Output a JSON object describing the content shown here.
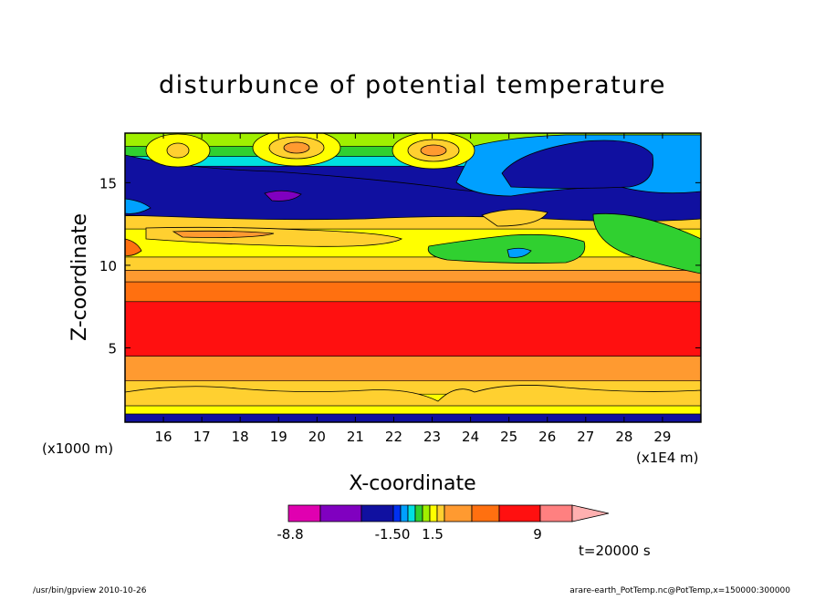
{
  "chart_data": {
    "type": "heatmap",
    "title": "disturbunce of potential temperature",
    "xlabel": "X-coordinate",
    "ylabel": "Z-coordinate",
    "x_scale_note": "(x1E4 m)",
    "y_scale_note": "(x1000 m)",
    "xlim": [
      15,
      30
    ],
    "ylim": [
      0.5,
      18
    ],
    "x_ticks": [
      16,
      17,
      18,
      19,
      20,
      21,
      22,
      23,
      24,
      25,
      26,
      27,
      28,
      29
    ],
    "y_ticks": [
      5,
      10,
      15
    ],
    "colorbar": {
      "labels": [
        {
          "text": "-8.8",
          "value": -8.8
        },
        {
          "text": "-1.50",
          "value": -1.5
        },
        {
          "text": "1.5",
          "value": 1.5
        },
        {
          "text": "9",
          "value": 9
        }
      ],
      "colors": [
        "#e000b0",
        "#8000c0",
        "#1010a0",
        "#0030f0",
        "#00a0ff",
        "#00e0e0",
        "#30d030",
        "#a0f000",
        "#ffff00",
        "#ffd030",
        "#ff9a30",
        "#ff7010",
        "#ff1010",
        "#ff8080",
        "#ffb0b0"
      ]
    },
    "time_label": "t=20000 s",
    "bands": [
      {
        "z_low": 0.5,
        "z_high": 1.0,
        "color": "#1010a0"
      },
      {
        "z_low": 1.0,
        "z_high": 2.2,
        "color": "#ffff00"
      },
      {
        "z_low": 2.2,
        "z_high": 3.0,
        "color": "#ffd030"
      },
      {
        "z_low": 3.0,
        "z_high": 4.5,
        "color": "#ff9a30"
      },
      {
        "z_low": 4.5,
        "z_high": 7.8,
        "color": "#ff1010"
      },
      {
        "z_low": 7.8,
        "z_high": 9.0,
        "color": "#ff7010"
      },
      {
        "z_low": 9.0,
        "z_high": 9.7,
        "color": "#ff9a30"
      },
      {
        "z_low": 9.7,
        "z_high": 10.5,
        "color": "#ffd030"
      },
      {
        "z_low": 10.5,
        "z_high": 12.2,
        "color": "#ffff00"
      },
      {
        "z_low": 12.2,
        "z_high": 13.0,
        "color": "#ffd030"
      },
      {
        "z_low": 13.0,
        "z_high": 16.0,
        "color": "#1010a0"
      },
      {
        "z_low": 16.0,
        "z_high": 16.6,
        "color": "#00e0e0"
      },
      {
        "z_low": 16.6,
        "z_high": 17.2,
        "color": "#30d030"
      },
      {
        "z_low": 17.2,
        "z_high": 18.0,
        "color": "#a0f000"
      }
    ]
  },
  "footer": {
    "left": "/usr/bin/gpview   2010-10-26",
    "right": "arare-earth_PotTemp.nc@PotTemp,x=150000:300000"
  }
}
